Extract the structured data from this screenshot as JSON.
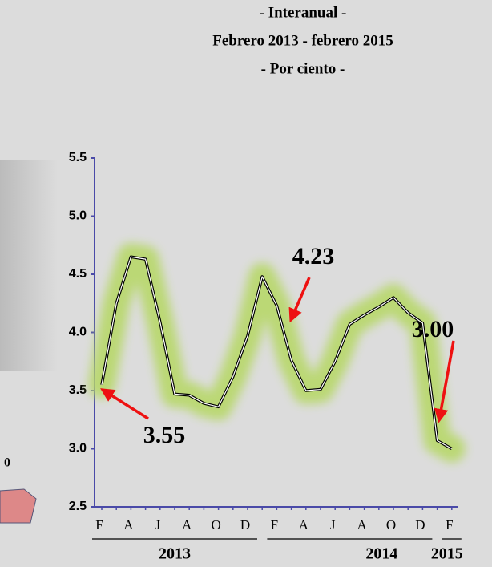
{
  "chart_data": {
    "type": "line",
    "title_lines": [
      "- Interanual -",
      "Febrero 2013 - febrero 2015",
      "- Por ciento -"
    ],
    "categories": [
      "F",
      null,
      "A",
      null,
      "J",
      null,
      "A",
      null,
      "O",
      null,
      "D",
      null,
      "F",
      null,
      "A",
      null,
      "J",
      null,
      "A",
      null,
      "O",
      null,
      "D",
      null,
      "F"
    ],
    "year_labels": [
      "2013",
      "2014",
      "2015"
    ],
    "series": [
      {
        "color": "#000000",
        "glow_color": "#b8d86a",
        "values": [
          3.55,
          4.25,
          4.65,
          4.63,
          4.09,
          3.47,
          3.46,
          3.39,
          3.36,
          3.62,
          3.97,
          4.48,
          4.23,
          3.76,
          3.5,
          3.51,
          3.75,
          4.07,
          4.15,
          4.22,
          4.3,
          4.17,
          4.08,
          3.07,
          3.0
        ]
      }
    ],
    "ylim": [
      2.5,
      5.5
    ],
    "yticks": [
      2.5,
      {
        "value": 3,
        "label": "3.0"
      },
      3.5,
      {
        "value": 4,
        "label": "4.0"
      },
      4.5,
      {
        "value": 5,
        "label": "5.0"
      },
      5.5
    ],
    "annotations": [
      {
        "text": "3.55"
      },
      {
        "text": "4.23"
      },
      {
        "text": "3.00"
      }
    ],
    "side_text": "0",
    "axis_color": "#4a4aa8"
  }
}
